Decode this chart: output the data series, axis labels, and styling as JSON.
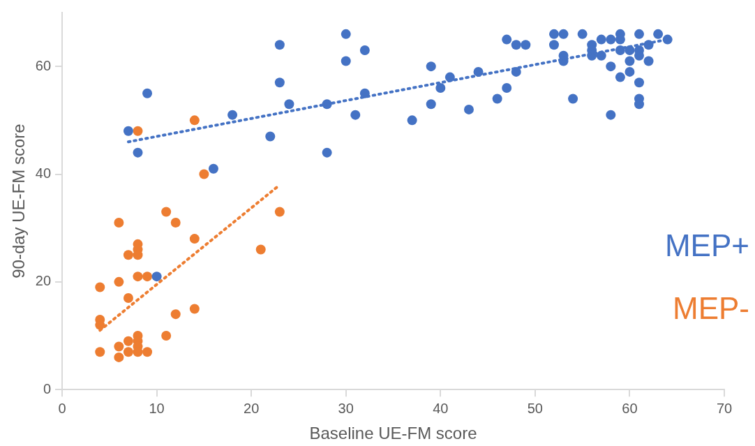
{
  "chart_data": {
    "type": "scatter",
    "xlabel": "Baseline UE-FM score",
    "ylabel": "90-day UE-FM score",
    "xlim": [
      0,
      70
    ],
    "xticks": [
      0,
      10,
      20,
      30,
      40,
      50,
      60,
      70
    ],
    "ylim": [
      0,
      70
    ],
    "yticks": [
      0,
      20,
      40,
      60
    ],
    "grid": false,
    "marker": "circle",
    "series": [
      {
        "name": "MEP+",
        "color": "#4472c4",
        "x": [
          7,
          8,
          9,
          10,
          16,
          18,
          22,
          23,
          23,
          24,
          28,
          28,
          30,
          30,
          31,
          32,
          32,
          37,
          39,
          39,
          40,
          41,
          43,
          44,
          46,
          47,
          47,
          48,
          48,
          49,
          52,
          52,
          53,
          53,
          53,
          54,
          55,
          56,
          56,
          56,
          57,
          57,
          58,
          58,
          58,
          59,
          59,
          59,
          59,
          60,
          60,
          60,
          61,
          61,
          61,
          61,
          61,
          61,
          62,
          62,
          63,
          64
        ],
        "values": [
          48,
          44,
          55,
          21,
          41,
          51,
          47,
          64,
          57,
          53,
          53,
          44,
          66,
          61,
          51,
          63,
          55,
          50,
          60,
          53,
          56,
          58,
          52,
          59,
          54,
          65,
          56,
          64,
          59,
          64,
          66,
          64,
          66,
          62,
          61,
          54,
          66,
          64,
          63,
          62,
          65,
          62,
          65,
          60,
          51,
          66,
          65,
          63,
          58,
          63,
          61,
          59,
          66,
          63,
          62,
          57,
          54,
          53,
          64,
          61,
          66,
          65
        ]
      },
      {
        "name": "MEP-",
        "color": "#ed7d31",
        "x": [
          4,
          4,
          4,
          4,
          6,
          6,
          6,
          6,
          7,
          7,
          7,
          7,
          8,
          8,
          8,
          8,
          8,
          8,
          8,
          8,
          8,
          9,
          9,
          11,
          11,
          12,
          12,
          14,
          14,
          14,
          15,
          21,
          23
        ],
        "values": [
          19,
          13,
          12,
          7,
          31,
          20,
          8,
          6,
          25,
          17,
          9,
          7,
          48,
          27,
          26,
          25,
          21,
          10,
          9,
          8,
          7,
          21,
          7,
          33,
          10,
          31,
          14,
          50,
          28,
          15,
          40,
          26,
          33
        ]
      },
      {
        "type": "line",
        "color": "#4472c4",
        "line_style": "dotted",
        "marker": "none",
        "x": [
          7,
          64
        ],
        "values": [
          46,
          65
        ]
      },
      {
        "type": "line",
        "color": "#ed7d31",
        "line_style": "dotted",
        "marker": "none",
        "x": [
          4,
          23
        ],
        "values": [
          11,
          38
        ]
      }
    ]
  }
}
